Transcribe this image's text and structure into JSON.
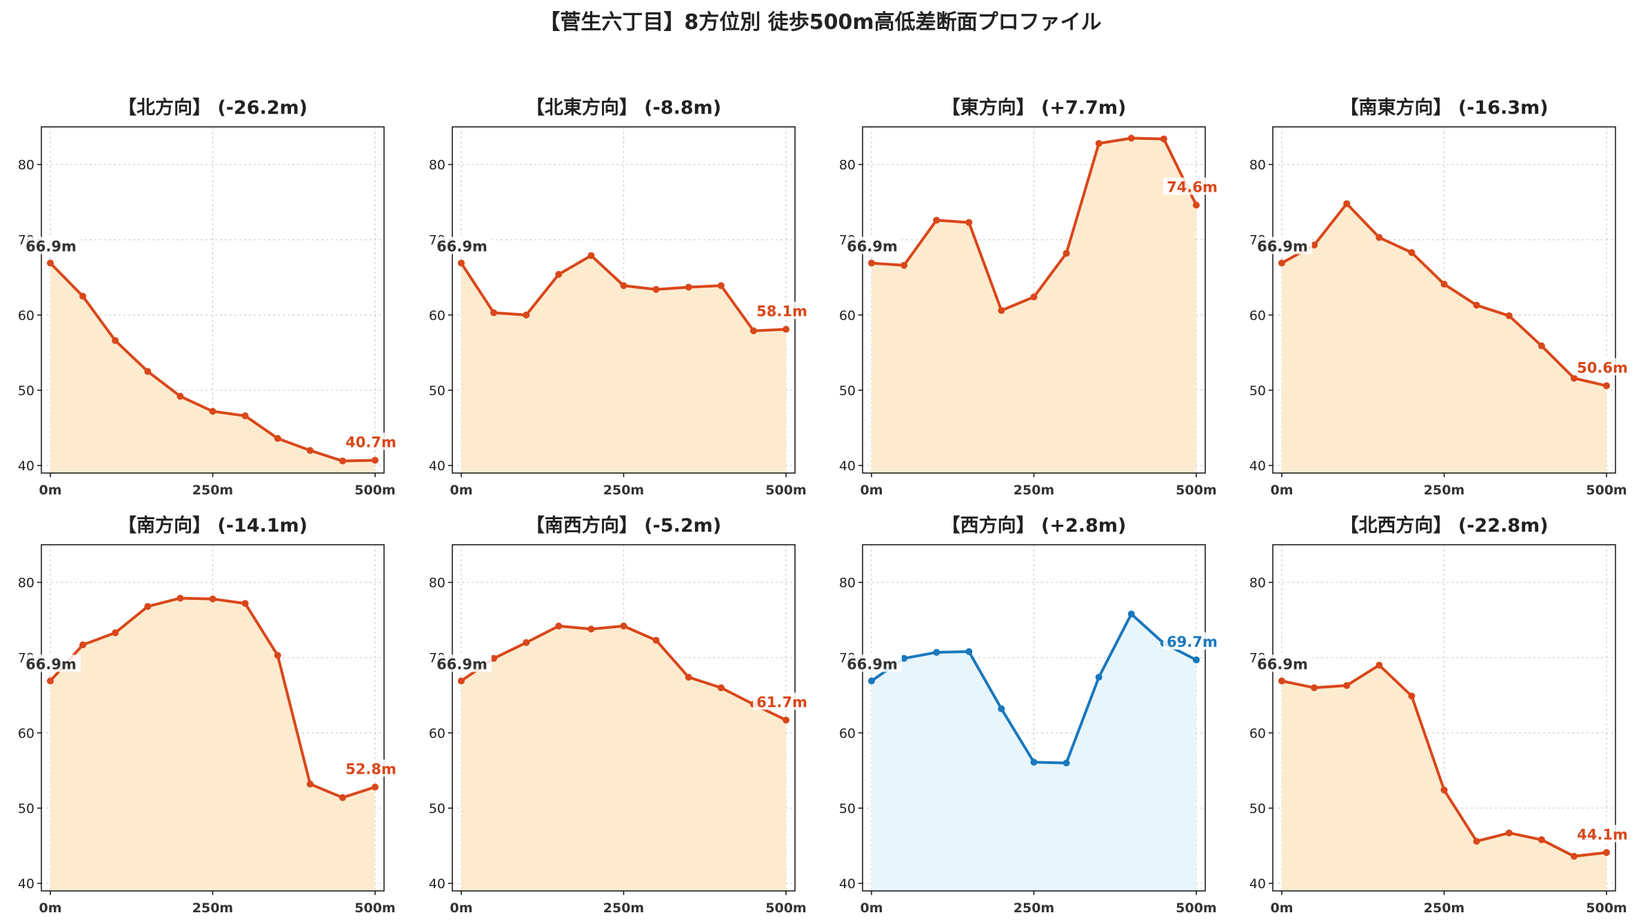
{
  "page": {
    "title": "【菅生六丁目】8方位別 徒歩500m高低差断面プロファイル"
  },
  "colors": {
    "down": "#d9471a",
    "down_fill": "#fdebd0",
    "up": "#1a78be",
    "up_fill": "#e8f6fc",
    "start_label": "#333333"
  },
  "chart_data": [
    {
      "type": "area",
      "title": "【北方向】 (-26.2m)",
      "x": [
        0,
        50,
        100,
        150,
        200,
        250,
        300,
        350,
        400,
        450,
        500
      ],
      "values": [
        66.9,
        62.5,
        56.6,
        52.5,
        49.2,
        47.2,
        46.6,
        43.6,
        42.0,
        40.6,
        40.7
      ],
      "start_label": "66.9m",
      "end_label": "40.7m",
      "style": "down",
      "ylim": [
        39,
        85
      ],
      "yticks": [
        40,
        50,
        60,
        70,
        80
      ],
      "xticks": [
        "0m",
        "250m",
        "500m"
      ],
      "xtick_values": [
        0,
        250,
        500
      ],
      "grid": true
    },
    {
      "type": "area",
      "title": "【北東方向】 (-8.8m)",
      "x": [
        0,
        50,
        100,
        150,
        200,
        250,
        300,
        350,
        400,
        450,
        500
      ],
      "values": [
        66.9,
        60.3,
        60.0,
        65.4,
        67.9,
        63.9,
        63.4,
        63.7,
        63.9,
        57.9,
        58.1
      ],
      "start_label": "66.9m",
      "end_label": "58.1m",
      "style": "down",
      "ylim": [
        39,
        85
      ],
      "yticks": [
        40,
        50,
        60,
        70,
        80
      ],
      "xticks": [
        "0m",
        "250m",
        "500m"
      ],
      "xtick_values": [
        0,
        250,
        500
      ],
      "grid": true
    },
    {
      "type": "area",
      "title": "【東方向】 (+7.7m)",
      "x": [
        0,
        50,
        100,
        150,
        200,
        250,
        300,
        350,
        400,
        450,
        500
      ],
      "values": [
        66.9,
        66.6,
        72.6,
        72.3,
        60.6,
        62.4,
        68.2,
        82.8,
        83.5,
        83.4,
        74.6
      ],
      "start_label": "66.9m",
      "end_label": "74.6m",
      "style": "down",
      "ylim": [
        39,
        85
      ],
      "yticks": [
        40,
        50,
        60,
        70,
        80
      ],
      "xticks": [
        "0m",
        "250m",
        "500m"
      ],
      "xtick_values": [
        0,
        250,
        500
      ],
      "grid": true
    },
    {
      "type": "area",
      "title": "【南東方向】 (-16.3m)",
      "x": [
        0,
        50,
        100,
        150,
        200,
        250,
        300,
        350,
        400,
        450,
        500
      ],
      "values": [
        66.9,
        69.3,
        74.8,
        70.3,
        68.3,
        64.1,
        61.3,
        59.9,
        55.9,
        51.6,
        50.6
      ],
      "start_label": "66.9m",
      "end_label": "50.6m",
      "style": "down",
      "ylim": [
        39,
        85
      ],
      "yticks": [
        40,
        50,
        60,
        70,
        80
      ],
      "xticks": [
        "0m",
        "250m",
        "500m"
      ],
      "xtick_values": [
        0,
        250,
        500
      ],
      "grid": true
    },
    {
      "type": "area",
      "title": "【南方向】 (-14.1m)",
      "x": [
        0,
        50,
        100,
        150,
        200,
        250,
        300,
        350,
        400,
        450,
        500
      ],
      "values": [
        66.9,
        71.7,
        73.3,
        76.8,
        77.9,
        77.8,
        77.2,
        70.3,
        53.2,
        51.4,
        52.8
      ],
      "start_label": "66.9m",
      "end_label": "52.8m",
      "style": "down",
      "ylim": [
        39,
        85
      ],
      "yticks": [
        40,
        50,
        60,
        70,
        80
      ],
      "xticks": [
        "0m",
        "250m",
        "500m"
      ],
      "xtick_values": [
        0,
        250,
        500
      ],
      "grid": true
    },
    {
      "type": "area",
      "title": "【南西方向】 (-5.2m)",
      "x": [
        0,
        50,
        100,
        150,
        200,
        250,
        300,
        350,
        400,
        450,
        500
      ],
      "values": [
        66.9,
        69.9,
        72.0,
        74.2,
        73.8,
        74.2,
        72.3,
        67.4,
        66.0,
        63.8,
        61.7
      ],
      "start_label": "66.9m",
      "end_label": "61.7m",
      "style": "down",
      "ylim": [
        39,
        85
      ],
      "yticks": [
        40,
        50,
        60,
        70,
        80
      ],
      "xticks": [
        "0m",
        "250m",
        "500m"
      ],
      "xtick_values": [
        0,
        250,
        500
      ],
      "grid": true
    },
    {
      "type": "area",
      "title": "【西方向】 (+2.8m)",
      "x": [
        0,
        50,
        100,
        150,
        200,
        250,
        300,
        350,
        400,
        450,
        500
      ],
      "values": [
        66.9,
        69.9,
        70.7,
        70.8,
        63.2,
        56.1,
        56.0,
        67.4,
        75.8,
        71.9,
        69.7
      ],
      "start_label": "66.9m",
      "end_label": "69.7m",
      "style": "up",
      "ylim": [
        39,
        85
      ],
      "yticks": [
        40,
        50,
        60,
        70,
        80
      ],
      "xticks": [
        "0m",
        "250m",
        "500m"
      ],
      "xtick_values": [
        0,
        250,
        500
      ],
      "grid": true
    },
    {
      "type": "area",
      "title": "【北西方向】 (-22.8m)",
      "x": [
        0,
        50,
        100,
        150,
        200,
        250,
        300,
        350,
        400,
        450,
        500
      ],
      "values": [
        66.9,
        66.0,
        66.3,
        69.0,
        64.9,
        52.4,
        45.6,
        46.7,
        45.8,
        43.6,
        44.1
      ],
      "start_label": "66.9m",
      "end_label": "44.1m",
      "style": "down",
      "ylim": [
        39,
        85
      ],
      "yticks": [
        40,
        50,
        60,
        70,
        80
      ],
      "xticks": [
        "0m",
        "250m",
        "500m"
      ],
      "xtick_values": [
        0,
        250,
        500
      ],
      "grid": true
    }
  ]
}
